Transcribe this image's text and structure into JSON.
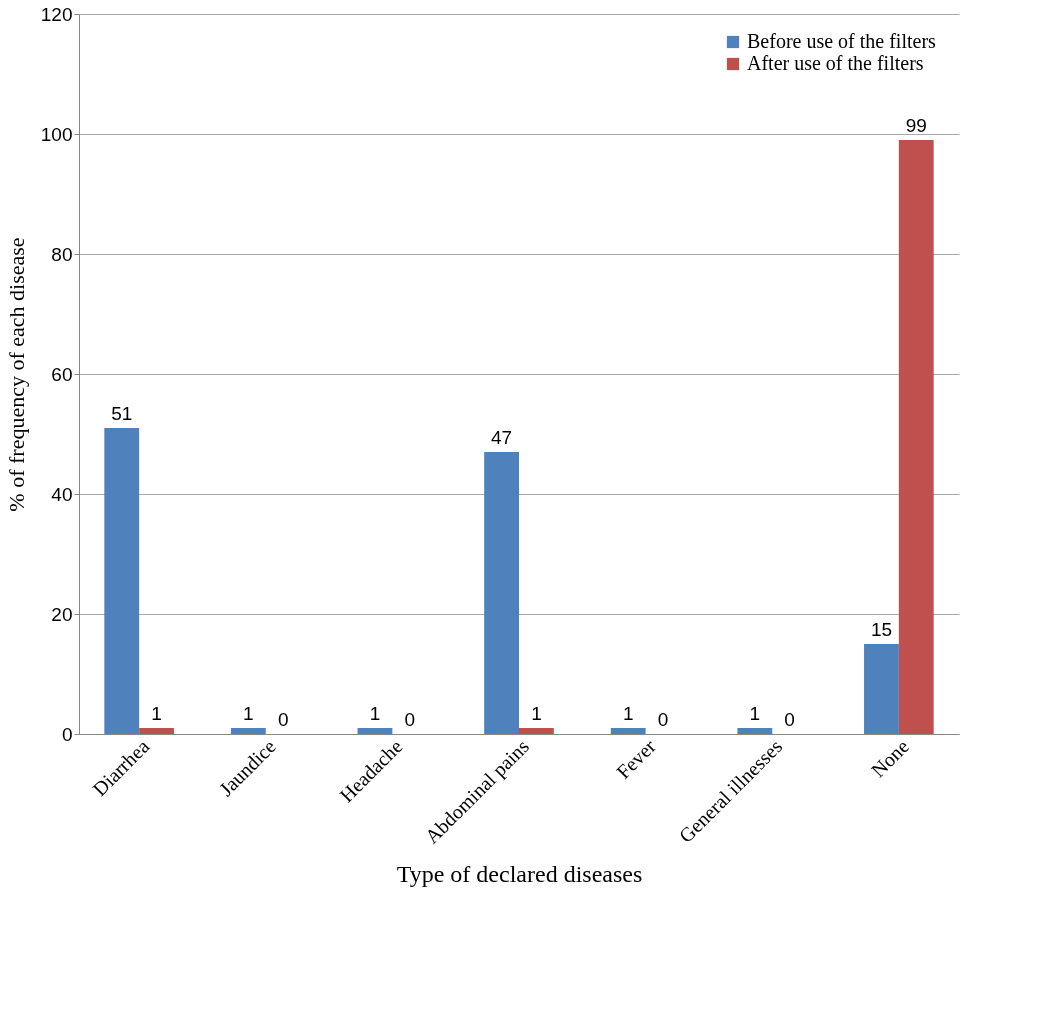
{
  "chart_data": {
    "type": "bar",
    "xlabel": "Type of  declared  diseases",
    "ylabel": "% of frequency of each disease",
    "categories": [
      "Diarrhea",
      "Jaundice",
      "Headache",
      "Abdominal pains",
      "Fever",
      "General illnesses",
      "None"
    ],
    "series": [
      {
        "name": "Before use of the  filters",
        "color": "#4f81bd",
        "values": [
          51,
          1,
          1,
          47,
          1,
          1,
          15
        ]
      },
      {
        "name": "After use of the filters",
        "color": "#c0504d",
        "values": [
          1,
          0,
          0,
          1,
          0,
          0,
          99
        ]
      }
    ],
    "ylim": [
      0,
      120
    ],
    "yticks": [
      0,
      20,
      40,
      60,
      80,
      100,
      120
    ],
    "grid": "y",
    "legend": "top right",
    "data_labels": true
  }
}
